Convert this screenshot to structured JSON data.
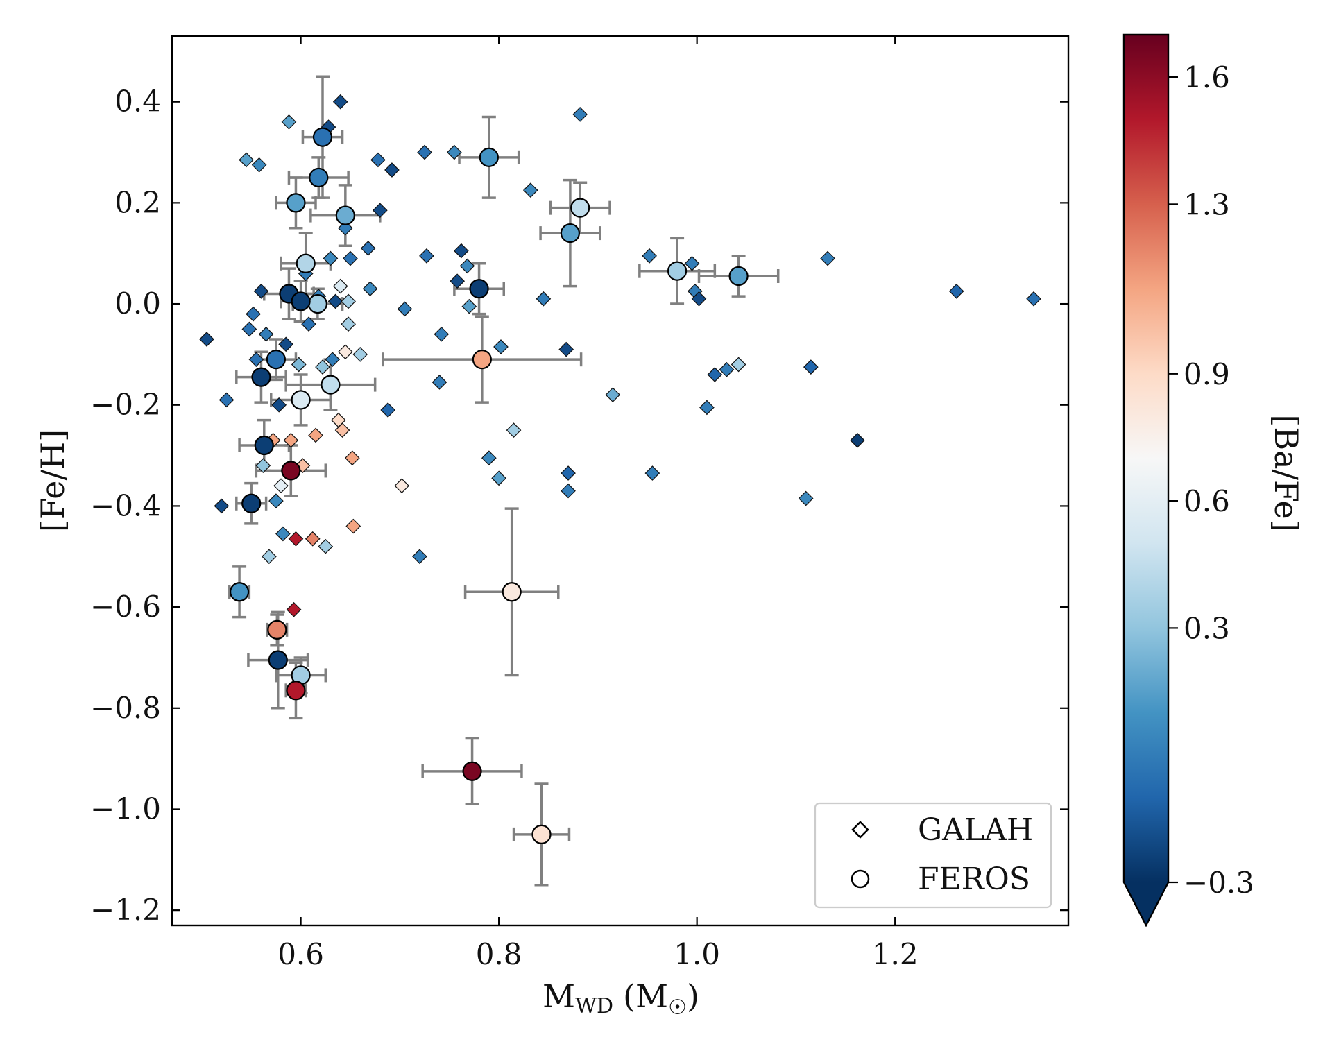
{
  "chart_data": {
    "type": "scatter",
    "xlabel": "M",
    "xlabel_sub": "WD",
    "xlabel_unit_open": "(M",
    "xlabel_unit_symbol": "☉",
    "xlabel_unit_close": ")",
    "ylabel": "[Fe/H]",
    "xlim": [
      0.47,
      1.375
    ],
    "ylim": [
      -1.23,
      0.53
    ],
    "xticks": [
      0.6,
      0.8,
      1.0,
      1.2
    ],
    "xtick_labels": [
      "0.6",
      "0.8",
      "1.0",
      "1.2"
    ],
    "yticks": [
      0.4,
      0.2,
      0.0,
      -0.2,
      -0.4,
      -0.6,
      -0.8,
      -1.0,
      -1.2
    ],
    "ytick_labels": [
      "0.4",
      "0.2",
      "0.0",
      "−0.2",
      "−0.4",
      "−0.6",
      "−0.8",
      "−1.0",
      "−1.2"
    ],
    "grid": false,
    "colorbar": {
      "label": "[Ba/Fe]",
      "ticks": [
        1.6,
        1.3,
        0.9,
        0.6,
        0.3,
        -0.3
      ],
      "tick_labels": [
        "1.6",
        "1.3",
        "0.9",
        "0.6",
        "0.3",
        "−0.3"
      ],
      "range": [
        -0.3,
        1.7
      ],
      "extend": "min",
      "colormap": [
        "#053061",
        "#2166ac",
        "#4393c3",
        "#92c5de",
        "#d1e5f0",
        "#f7f7f7",
        "#fddbc7",
        "#f4a582",
        "#d6604d",
        "#b2182b",
        "#67001f"
      ]
    },
    "legend": {
      "position": "lower-right",
      "entries": [
        {
          "label": "GALAH",
          "marker": "diamond"
        },
        {
          "label": "FEROS",
          "marker": "circle"
        }
      ]
    },
    "series": [
      {
        "name": "GALAH",
        "marker": "diamond",
        "points": [
          {
            "x": 0.505,
            "y": -0.07,
            "c": -0.2
          },
          {
            "x": 0.52,
            "y": -0.4,
            "c": -0.2
          },
          {
            "x": 0.525,
            "y": -0.19,
            "c": -0.05
          },
          {
            "x": 0.545,
            "y": 0.285,
            "c": 0.15
          },
          {
            "x": 0.548,
            "y": -0.05,
            "c": -0.05
          },
          {
            "x": 0.552,
            "y": -0.02,
            "c": -0.05
          },
          {
            "x": 0.555,
            "y": -0.11,
            "c": -0.05
          },
          {
            "x": 0.558,
            "y": 0.275,
            "c": 0.05
          },
          {
            "x": 0.56,
            "y": 0.025,
            "c": -0.2
          },
          {
            "x": 0.562,
            "y": -0.32,
            "c": 0.3
          },
          {
            "x": 0.565,
            "y": -0.06,
            "c": 0.0
          },
          {
            "x": 0.568,
            "y": -0.5,
            "c": 0.35
          },
          {
            "x": 0.572,
            "y": -0.27,
            "c": 1.1
          },
          {
            "x": 0.575,
            "y": -0.39,
            "c": 0.05
          },
          {
            "x": 0.578,
            "y": -0.2,
            "c": -0.2
          },
          {
            "x": 0.58,
            "y": -0.36,
            "c": 0.6
          },
          {
            "x": 0.582,
            "y": -0.455,
            "c": 0.05
          },
          {
            "x": 0.585,
            "y": -0.08,
            "c": -0.2
          },
          {
            "x": 0.588,
            "y": 0.36,
            "c": 0.15
          },
          {
            "x": 0.59,
            "y": -0.27,
            "c": 1.1
          },
          {
            "x": 0.593,
            "y": -0.605,
            "c": 1.5
          },
          {
            "x": 0.595,
            "y": -0.465,
            "c": 1.5
          },
          {
            "x": 0.598,
            "y": -0.12,
            "c": 0.25
          },
          {
            "x": 0.602,
            "y": -0.32,
            "c": 1.0
          },
          {
            "x": 0.605,
            "y": 0.06,
            "c": 0.0
          },
          {
            "x": 0.608,
            "y": -0.04,
            "c": -0.05
          },
          {
            "x": 0.612,
            "y": -0.465,
            "c": 1.2
          },
          {
            "x": 0.615,
            "y": -0.26,
            "c": 1.1
          },
          {
            "x": 0.618,
            "y": 0.015,
            "c": 0.0
          },
          {
            "x": 0.622,
            "y": -0.125,
            "c": 0.3
          },
          {
            "x": 0.625,
            "y": -0.48,
            "c": 0.35
          },
          {
            "x": 0.628,
            "y": 0.35,
            "c": -0.2
          },
          {
            "x": 0.63,
            "y": 0.09,
            "c": 0.05
          },
          {
            "x": 0.632,
            "y": -0.11,
            "c": 0.0
          },
          {
            "x": 0.635,
            "y": 0.005,
            "c": -0.2
          },
          {
            "x": 0.638,
            "y": -0.23,
            "c": 0.9
          },
          {
            "x": 0.64,
            "y": 0.4,
            "c": -0.2
          },
          {
            "x": 0.64,
            "y": 0.035,
            "c": 0.55
          },
          {
            "x": 0.642,
            "y": -0.25,
            "c": 1.0
          },
          {
            "x": 0.645,
            "y": 0.15,
            "c": 0.0
          },
          {
            "x": 0.645,
            "y": -0.095,
            "c": 0.8
          },
          {
            "x": 0.648,
            "y": 0.005,
            "c": 0.35
          },
          {
            "x": 0.648,
            "y": -0.04,
            "c": 0.35
          },
          {
            "x": 0.65,
            "y": 0.09,
            "c": -0.05
          },
          {
            "x": 0.652,
            "y": -0.305,
            "c": 1.1
          },
          {
            "x": 0.653,
            "y": -0.44,
            "c": 1.1
          },
          {
            "x": 0.66,
            "y": -0.1,
            "c": 0.35
          },
          {
            "x": 0.668,
            "y": 0.11,
            "c": -0.05
          },
          {
            "x": 0.67,
            "y": 0.03,
            "c": 0.05
          },
          {
            "x": 0.678,
            "y": 0.285,
            "c": -0.05
          },
          {
            "x": 0.68,
            "y": 0.185,
            "c": -0.2
          },
          {
            "x": 0.688,
            "y": -0.21,
            "c": -0.1
          },
          {
            "x": 0.692,
            "y": 0.265,
            "c": -0.2
          },
          {
            "x": 0.702,
            "y": -0.36,
            "c": 0.8
          },
          {
            "x": 0.705,
            "y": -0.01,
            "c": 0.0
          },
          {
            "x": 0.72,
            "y": -0.5,
            "c": 0.0
          },
          {
            "x": 0.725,
            "y": 0.3,
            "c": -0.05
          },
          {
            "x": 0.727,
            "y": 0.095,
            "c": -0.05
          },
          {
            "x": 0.74,
            "y": -0.155,
            "c": 0.0
          },
          {
            "x": 0.742,
            "y": -0.06,
            "c": 0.0
          },
          {
            "x": 0.755,
            "y": 0.3,
            "c": 0.05
          },
          {
            "x": 0.758,
            "y": 0.045,
            "c": -0.2
          },
          {
            "x": 0.762,
            "y": 0.105,
            "c": -0.2
          },
          {
            "x": 0.768,
            "y": 0.075,
            "c": 0.05
          },
          {
            "x": 0.77,
            "y": -0.005,
            "c": 0.15
          },
          {
            "x": 0.79,
            "y": -0.305,
            "c": 0.05
          },
          {
            "x": 0.8,
            "y": -0.345,
            "c": 0.15
          },
          {
            "x": 0.802,
            "y": -0.085,
            "c": 0.05
          },
          {
            "x": 0.815,
            "y": -0.25,
            "c": 0.35
          },
          {
            "x": 0.832,
            "y": 0.225,
            "c": 0.05
          },
          {
            "x": 0.845,
            "y": 0.01,
            "c": 0.0
          },
          {
            "x": 0.868,
            "y": -0.09,
            "c": -0.2
          },
          {
            "x": 0.87,
            "y": -0.335,
            "c": -0.1
          },
          {
            "x": 0.87,
            "y": -0.37,
            "c": 0.0
          },
          {
            "x": 0.882,
            "y": 0.375,
            "c": 0.0
          },
          {
            "x": 0.915,
            "y": -0.18,
            "c": 0.2
          },
          {
            "x": 0.952,
            "y": 0.095,
            "c": 0.0
          },
          {
            "x": 0.955,
            "y": -0.335,
            "c": 0.0
          },
          {
            "x": 0.995,
            "y": 0.08,
            "c": 0.0
          },
          {
            "x": 0.998,
            "y": 0.025,
            "c": 0.0
          },
          {
            "x": 1.002,
            "y": 0.01,
            "c": -0.2
          },
          {
            "x": 1.01,
            "y": -0.205,
            "c": 0.0
          },
          {
            "x": 1.018,
            "y": -0.14,
            "c": -0.1
          },
          {
            "x": 1.03,
            "y": -0.13,
            "c": 0.0
          },
          {
            "x": 1.042,
            "y": -0.12,
            "c": 0.35
          },
          {
            "x": 1.11,
            "y": -0.385,
            "c": 0.05
          },
          {
            "x": 1.115,
            "y": -0.125,
            "c": -0.1
          },
          {
            "x": 1.132,
            "y": 0.09,
            "c": 0.0
          },
          {
            "x": 1.162,
            "y": -0.27,
            "c": -0.25
          },
          {
            "x": 1.262,
            "y": 0.025,
            "c": -0.1
          },
          {
            "x": 1.34,
            "y": 0.01,
            "c": -0.05
          }
        ]
      },
      {
        "name": "FEROS",
        "marker": "circle",
        "points": [
          {
            "x": 0.622,
            "y": 0.33,
            "c": -0.05,
            "xerr": 0.02,
            "yerr": 0.12
          },
          {
            "x": 0.618,
            "y": 0.25,
            "c": 0.0,
            "xerr": 0.03,
            "yerr": 0.04
          },
          {
            "x": 0.595,
            "y": 0.2,
            "c": 0.15,
            "xerr": 0.02,
            "yerr": 0.05
          },
          {
            "x": 0.645,
            "y": 0.175,
            "c": 0.2,
            "xerr": 0.035,
            "yerr": 0.06
          },
          {
            "x": 0.605,
            "y": 0.08,
            "c": 0.4,
            "xerr": 0.025,
            "yerr": 0.06
          },
          {
            "x": 0.617,
            "y": 0.0,
            "c": 0.35,
            "xerr": 0.025,
            "yerr": 0.03
          },
          {
            "x": 0.588,
            "y": 0.02,
            "c": -0.25,
            "xerr": 0.025,
            "yerr": 0.05
          },
          {
            "x": 0.6,
            "y": 0.005,
            "c": -0.25,
            "xerr": 0.02,
            "yerr": 0.04
          },
          {
            "x": 0.575,
            "y": -0.11,
            "c": -0.05,
            "xerr": 0.02,
            "yerr": 0.04
          },
          {
            "x": 0.56,
            "y": -0.145,
            "c": -0.25,
            "xerr": 0.025,
            "yerr": 0.05
          },
          {
            "x": 0.63,
            "y": -0.16,
            "c": 0.45,
            "xerr": 0.045,
            "yerr": 0.05
          },
          {
            "x": 0.6,
            "y": -0.19,
            "c": 0.55,
            "xerr": 0.03,
            "yerr": 0.05
          },
          {
            "x": 0.563,
            "y": -0.28,
            "c": -0.25,
            "xerr": 0.025,
            "yerr": 0.05
          },
          {
            "x": 0.59,
            "y": -0.33,
            "c": 1.65,
            "xerr": 0.035,
            "yerr": 0.05
          },
          {
            "x": 0.55,
            "y": -0.395,
            "c": -0.25,
            "xerr": 0.015,
            "yerr": 0.04
          },
          {
            "x": 0.538,
            "y": -0.57,
            "c": 0.1,
            "xerr": 0.01,
            "yerr": 0.05
          },
          {
            "x": 0.576,
            "y": -0.645,
            "c": 1.2,
            "xerr": 0.01,
            "yerr": 0.03
          },
          {
            "x": 0.577,
            "y": -0.705,
            "c": -0.25,
            "xerr": 0.03,
            "yerr": 0.095
          },
          {
            "x": 0.6,
            "y": -0.735,
            "c": 0.35,
            "xerr": 0.025,
            "yerr": 0.035
          },
          {
            "x": 0.595,
            "y": -0.765,
            "c": 1.5,
            "xerr": 0.01,
            "yerr": 0.055
          },
          {
            "x": 0.79,
            "y": 0.29,
            "c": 0.1,
            "xerr": 0.03,
            "yerr": 0.08
          },
          {
            "x": 0.882,
            "y": 0.19,
            "c": 0.45,
            "xerr": 0.03,
            "yerr": 0.05
          },
          {
            "x": 0.872,
            "y": 0.14,
            "c": 0.15,
            "xerr": 0.03,
            "yerr": 0.105
          },
          {
            "x": 0.78,
            "y": 0.03,
            "c": -0.25,
            "xerr": 0.025,
            "yerr": 0.05
          },
          {
            "x": 0.98,
            "y": 0.065,
            "c": 0.35,
            "xerr": 0.038,
            "yerr": 0.065
          },
          {
            "x": 1.042,
            "y": 0.055,
            "c": 0.15,
            "xerr": 0.04,
            "yerr": 0.04
          },
          {
            "x": 0.783,
            "y": -0.11,
            "c": 1.1,
            "xerr": 0.1,
            "yerr": 0.085
          },
          {
            "x": 0.813,
            "y": -0.57,
            "c": 0.8,
            "xerr": 0.047,
            "yerr": 0.165
          },
          {
            "x": 0.773,
            "y": -0.925,
            "c": 1.65,
            "xerr": 0.05,
            "yerr": 0.065
          },
          {
            "x": 0.843,
            "y": -1.05,
            "c": 0.85,
            "xerr": 0.028,
            "yerr": 0.1
          }
        ]
      }
    ]
  }
}
